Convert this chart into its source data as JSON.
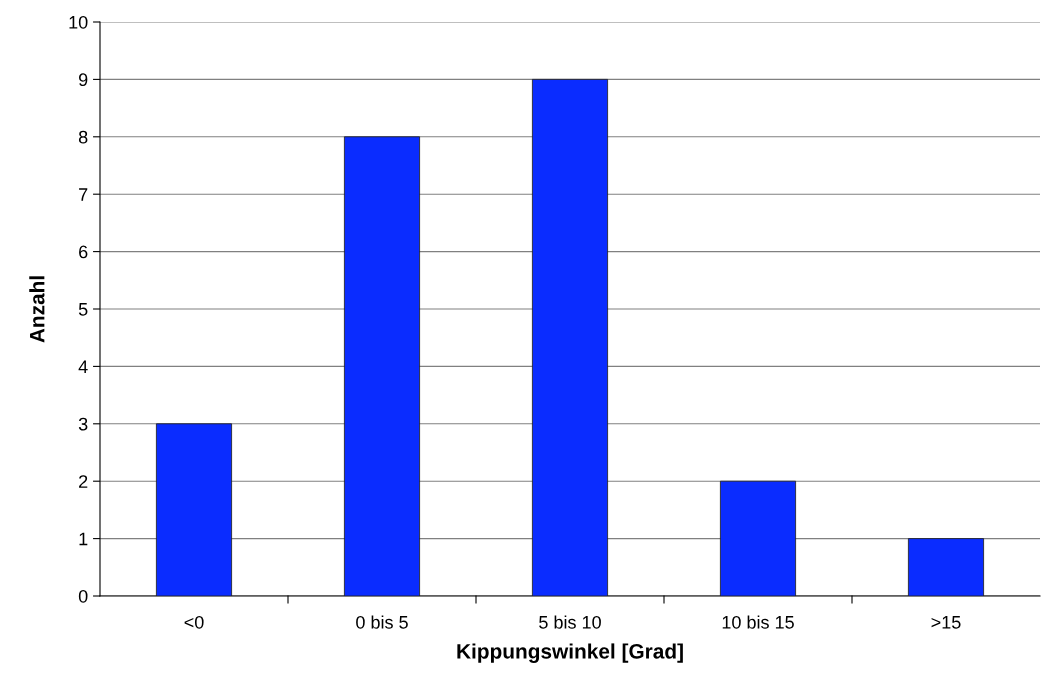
{
  "chart_data": {
    "type": "bar",
    "xlabel": "Kippungswinkel [Grad]",
    "ylabel": "Anzahl",
    "categories": [
      "<0",
      "0 bis 5",
      "5 bis 10",
      "10 bis 15",
      ">15"
    ],
    "values": [
      3,
      8,
      9,
      2,
      1
    ],
    "color": "#0a2cff",
    "ylim": [
      0,
      10
    ],
    "yticks": [
      0,
      1,
      2,
      3,
      4,
      5,
      6,
      7,
      8,
      9,
      10
    ],
    "grid": "y",
    "legend": false
  }
}
